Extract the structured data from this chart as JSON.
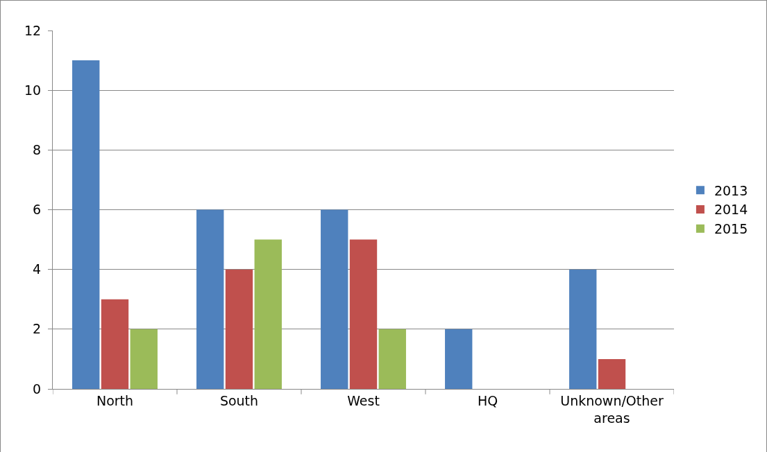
{
  "chart_data": {
    "type": "bar",
    "categories": [
      "North",
      "South",
      "West",
      "HQ",
      "Unknown/Other areas"
    ],
    "series": [
      {
        "name": "2013",
        "color": "#4f81bd",
        "values": [
          11,
          6,
          6,
          2,
          4
        ]
      },
      {
        "name": "2014",
        "color": "#c0504d",
        "values": [
          3,
          4,
          5,
          0,
          1
        ]
      },
      {
        "name": "2015",
        "color": "#9bbb59",
        "values": [
          2,
          5,
          2,
          0,
          0
        ]
      }
    ],
    "ylim": [
      0,
      12
    ],
    "yticks": [
      0,
      2,
      4,
      6,
      8,
      10,
      12
    ],
    "grid": "y",
    "legend": "right"
  }
}
